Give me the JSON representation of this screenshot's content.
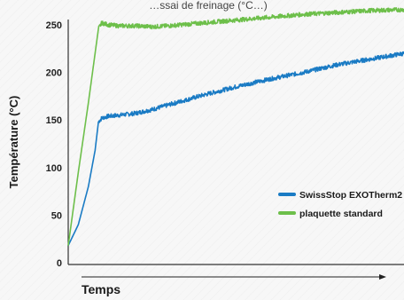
{
  "chart_data": {
    "type": "line",
    "title": "…ssai de freinage (°C…)",
    "xlabel": "Temps",
    "ylabel": "Température (°C)",
    "ylim": [
      0,
      250
    ],
    "yticks": [
      0,
      50,
      100,
      150,
      200,
      250
    ],
    "xlim": [
      0,
      100
    ],
    "grid": false,
    "legend_position": "center-right",
    "series": [
      {
        "name": "SwissStop EXOTherm2",
        "color": "#1a7bc4",
        "x": [
          0,
          3,
          6,
          8,
          9,
          10,
          12,
          15,
          20,
          25,
          30,
          40,
          50,
          60,
          70,
          80,
          90,
          100
        ],
        "y": [
          18,
          40,
          80,
          118,
          148,
          152,
          154,
          155,
          157,
          161,
          166,
          176,
          185,
          193,
          200,
          208,
          214,
          220
        ]
      },
      {
        "name": "plaquette standard",
        "color": "#6dbf4a",
        "x": [
          0,
          3,
          6,
          8,
          9,
          10,
          12,
          15,
          20,
          25,
          30,
          40,
          50,
          60,
          70,
          80,
          90,
          100
        ],
        "y": [
          18,
          95,
          168,
          220,
          246,
          252,
          250,
          249,
          249,
          248,
          249,
          252,
          255,
          258,
          261,
          263,
          265,
          266
        ]
      }
    ]
  }
}
